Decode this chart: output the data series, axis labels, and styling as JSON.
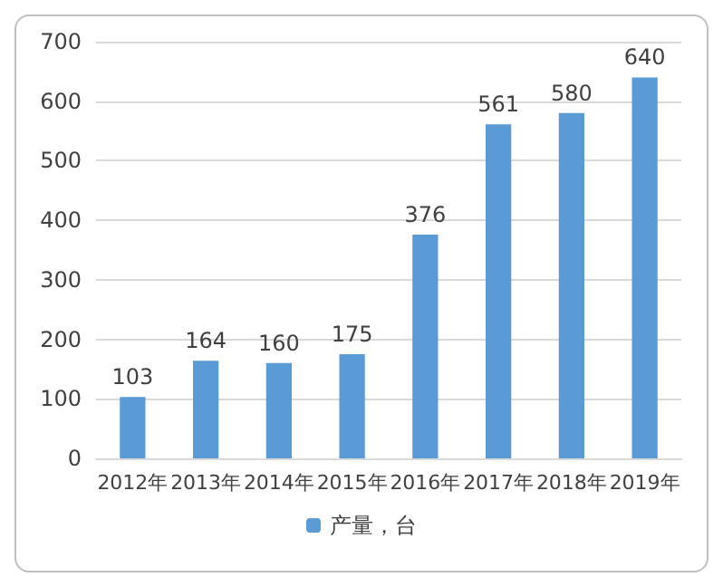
{
  "chart_data": {
    "type": "bar",
    "categories": [
      "2012年",
      "2013年",
      "2014年",
      "2015年",
      "2016年",
      "2017年",
      "2018年",
      "2019年"
    ],
    "series": [
      {
        "name": "产量，台",
        "color": "#5b9bd5",
        "values": [
          103,
          164,
          160,
          175,
          376,
          561,
          580,
          640
        ]
      }
    ],
    "ylim": [
      0,
      700
    ],
    "yticks": [
      0,
      100,
      200,
      300,
      400,
      500,
      600,
      700
    ],
    "grid": "y",
    "legend": "bottom",
    "data_labels": true
  }
}
